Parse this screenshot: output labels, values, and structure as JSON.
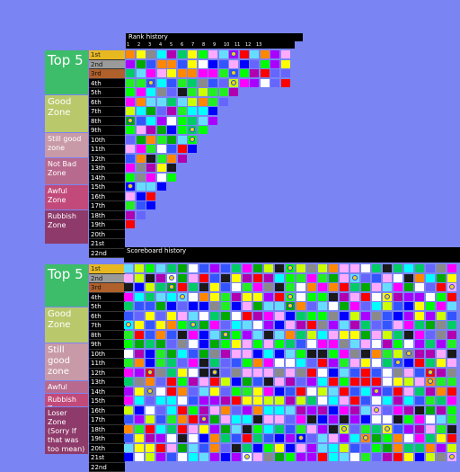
{
  "rank_history": {
    "title": "Rank history",
    "columns": [
      "1",
      "2",
      "3",
      "4",
      "5",
      "6",
      "7",
      "8",
      "9",
      "10",
      "11",
      "12",
      "13"
    ],
    "ranks": [
      "1st",
      "2nd",
      "3rd",
      "4th",
      "5th",
      "6th",
      "7th",
      "8th",
      "9th",
      "10th",
      "11th",
      "12th",
      "13th",
      "14th",
      "15th",
      "16th",
      "17th",
      "18th",
      "19th",
      "20th",
      "21st",
      "22nd"
    ],
    "zones": [
      {
        "label": "Top 5",
        "color": "#3dbd6a",
        "size": "big"
      },
      {
        "label": "Good Zone",
        "color": "#b9c86a",
        "size": "mid"
      },
      {
        "label": "Still good zone",
        "color": "#c89aa8",
        "size": "small"
      },
      {
        "label": "Not Bad Zone",
        "color": "#b86a8e",
        "size": "small"
      },
      {
        "label": "Awful Zone",
        "color": "#c24a7a",
        "size": "small"
      },
      {
        "label": "Rubbish Zone",
        "color": "#8e3a6a",
        "size": "small"
      }
    ]
  },
  "scoreboard_history": {
    "title": "Scoreboard history",
    "ranks": [
      "1st",
      "2nd",
      "3rd",
      "4th",
      "5th",
      "6th",
      "7th",
      "8th",
      "9th",
      "10th",
      "11th",
      "12th",
      "13th",
      "14th",
      "15th",
      "16th",
      "17th",
      "18th",
      "19th",
      "20th",
      "21st",
      "22nd"
    ],
    "zones": [
      {
        "label": "Top 5",
        "color": "#3dbd6a",
        "size": "big"
      },
      {
        "label": "Good Zone",
        "color": "#b9c86a",
        "size": "mid"
      },
      {
        "label": "Still good zone",
        "color": "#c89aa8",
        "size": "mid"
      },
      {
        "label": "Awful Zone",
        "color": "#b86a8e",
        "size": "small"
      },
      {
        "label": "Rubbish Zone",
        "color": "#c24a7a",
        "size": "small"
      },
      {
        "label": "Loser Zone (Sorry If that was too mean)",
        "color": "#8e3a6a",
        "size": "small"
      }
    ]
  },
  "palette": [
    "#ff0000",
    "#00ff00",
    "#0000ff",
    "#ffff00",
    "#ff00ff",
    "#00ffff",
    "#ffffff",
    "#00aa00",
    "#1a1a1a",
    "#8a8a8a",
    "#aa00ff",
    "#ff8800",
    "#3355ff",
    "#00cc66",
    "#ffaaff",
    "#66ddff",
    "#b000b0",
    "#22ee22",
    "#6666ff",
    "#ccff00"
  ]
}
